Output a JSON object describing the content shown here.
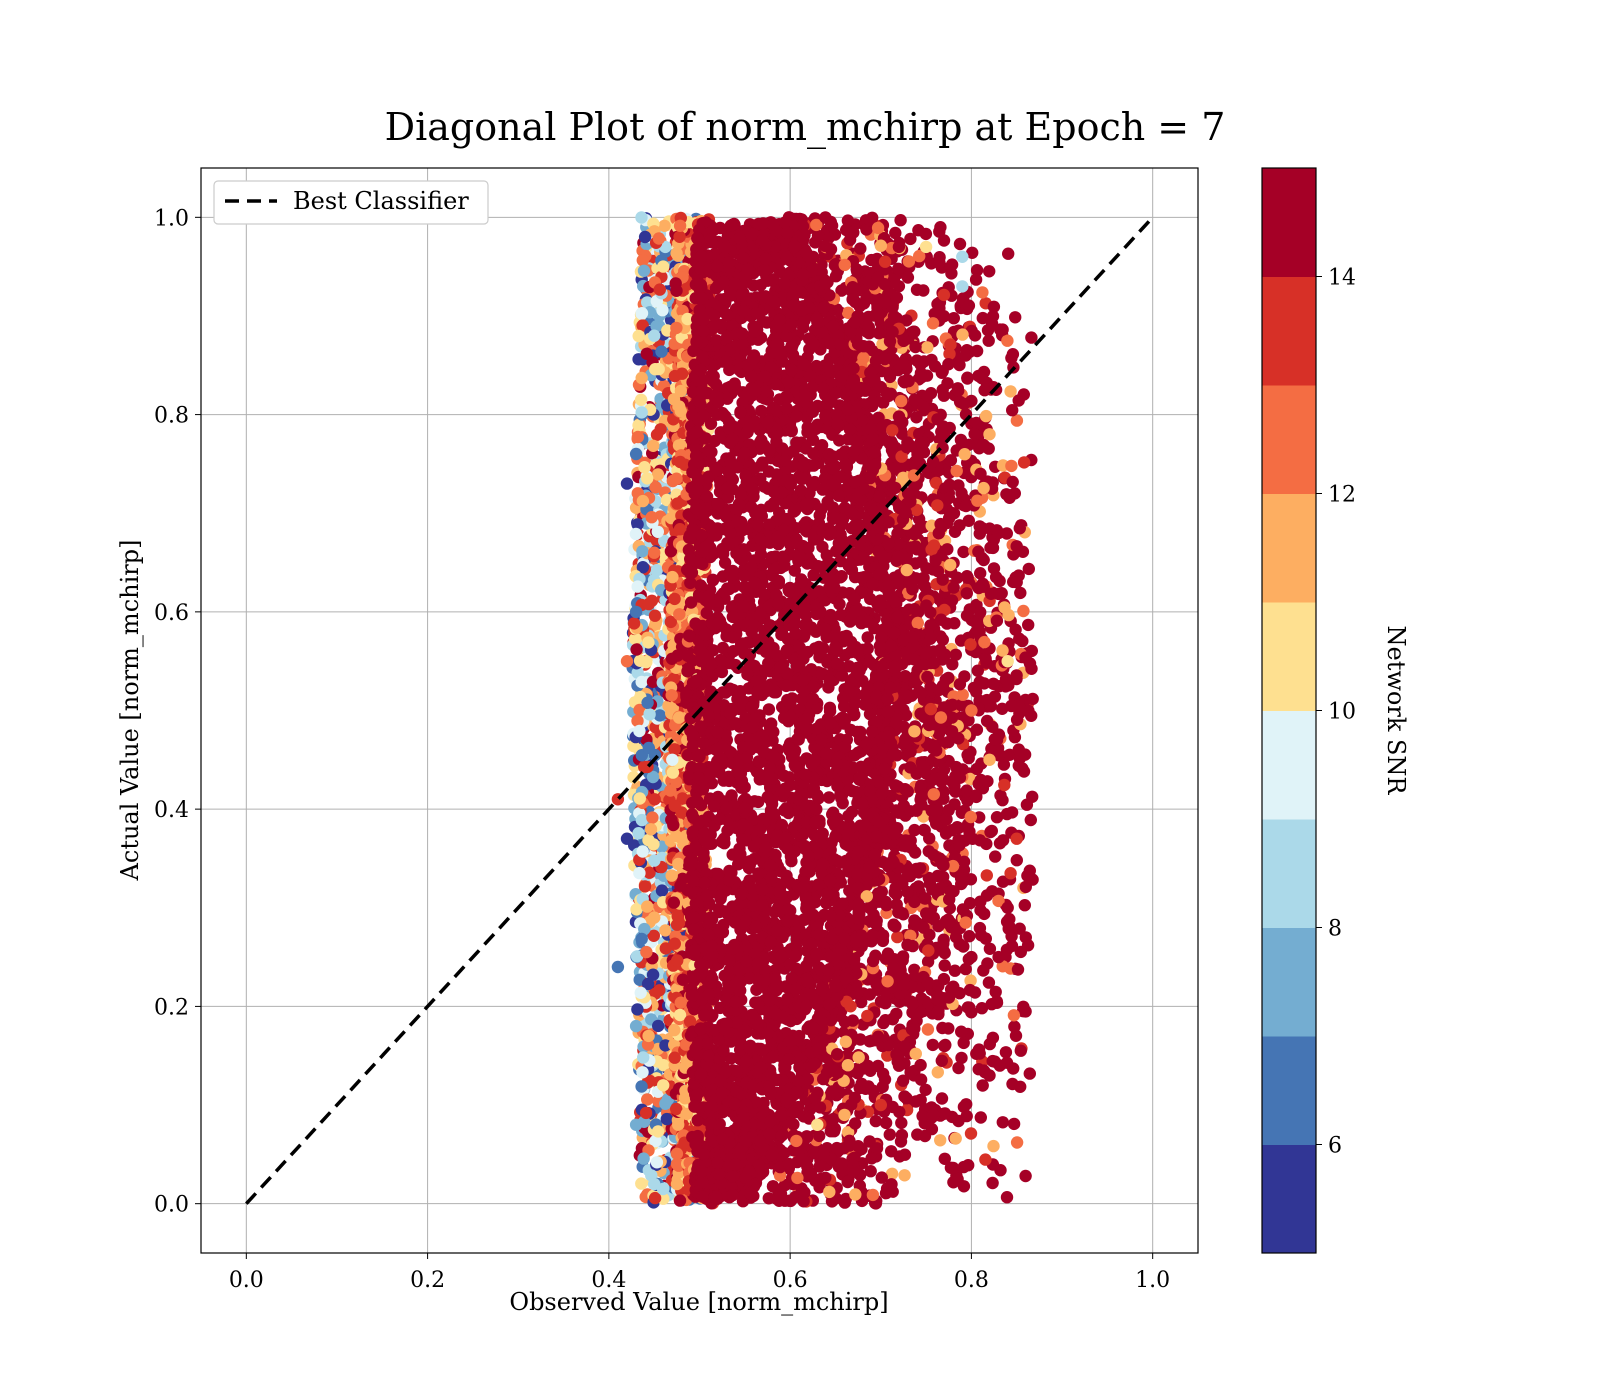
{
  "chart_data": {
    "type": "scatter",
    "title": "Diagonal Plot of norm_mchirp at Epoch = 7",
    "xlabel": "Observed Value [norm_mchirp]",
    "ylabel": "Actual Value [norm_mchirp]",
    "xlim": [
      -0.05,
      1.05
    ],
    "ylim": [
      -0.05,
      1.05
    ],
    "xticks": [
      0.0,
      0.2,
      0.4,
      0.6,
      0.8,
      1.0
    ],
    "yticks": [
      0.0,
      0.2,
      0.4,
      0.6,
      0.8,
      1.0
    ],
    "xtick_labels": [
      "0.0",
      "0.2",
      "0.4",
      "0.6",
      "0.8",
      "1.0"
    ],
    "ytick_labels": [
      "0.0",
      "0.2",
      "0.4",
      "0.6",
      "0.8",
      "1.0"
    ],
    "grid": true,
    "legend_position": "top-left",
    "reference_line": {
      "name": "Best Classifier",
      "x": [
        0.0,
        1.0
      ],
      "y": [
        0.0,
        1.0
      ],
      "style": "dashed",
      "color": "#000000"
    },
    "color_by": "Network SNR",
    "colorbar": {
      "label": "Network SNR",
      "min": 5,
      "max": 15,
      "ticks": [
        6,
        8,
        10,
        12,
        14
      ],
      "tick_labels": [
        "6",
        "8",
        "10",
        "12",
        "14"
      ],
      "colors": [
        "#313695",
        "#4575b4",
        "#74add1",
        "#abd9e9",
        "#e0f3f8",
        "#fee090",
        "#fdae61",
        "#f46d43",
        "#d73027",
        "#a50026"
      ]
    },
    "point_cloud": {
      "description_values": "approximate sampled points; x observed, y actual, c network SNR",
      "dense_band_x_range": [
        0.5,
        0.72
      ],
      "y_range": [
        0.0,
        1.0
      ],
      "points": [
        [
          0.44,
          0.98,
          5.5
        ],
        [
          0.43,
          0.76,
          6.5
        ],
        [
          0.42,
          0.73,
          5.2
        ],
        [
          0.43,
          0.6,
          6.1
        ],
        [
          0.42,
          0.55,
          12.5
        ],
        [
          0.42,
          0.37,
          5.4
        ],
        [
          0.41,
          0.41,
          13.0
        ],
        [
          0.41,
          0.24,
          6.0
        ],
        [
          0.43,
          0.18,
          7.0
        ],
        [
          0.43,
          0.08,
          7.5
        ],
        [
          0.45,
          0.02,
          8.5
        ],
        [
          0.46,
          0.95,
          10.5
        ],
        [
          0.45,
          0.88,
          8.0
        ],
        [
          0.45,
          0.66,
          12.0
        ],
        [
          0.45,
          0.29,
          11.5
        ],
        [
          0.47,
          0.45,
          9.5
        ],
        [
          0.46,
          0.12,
          10.2
        ],
        [
          0.79,
          0.96,
          8.5
        ],
        [
          0.79,
          0.93,
          8.0
        ],
        [
          0.82,
          0.78,
          11.5
        ],
        [
          0.84,
          0.55,
          10.5
        ],
        [
          0.85,
          0.63,
          14.8
        ],
        [
          0.86,
          0.27,
          14.7
        ],
        [
          0.85,
          0.37,
          13.5
        ],
        [
          0.84,
          0.3,
          14.9
        ],
        [
          0.82,
          0.13,
          14.9
        ],
        [
          0.71,
          0.07,
          14.9
        ],
        [
          0.7,
          0.1,
          13.8
        ],
        [
          0.66,
          0.09,
          11.5
        ],
        [
          0.63,
          0.08,
          10.5
        ],
        [
          0.75,
          0.97,
          10.8
        ],
        [
          0.72,
          0.97,
          14.9
        ],
        [
          0.78,
          0.22,
          14.6
        ],
        [
          0.8,
          0.5,
          12.3
        ],
        [
          0.81,
          0.74,
          14.9
        ],
        [
          0.83,
          0.68,
          14.9
        ],
        [
          0.82,
          0.45,
          11.5
        ],
        [
          0.77,
          0.16,
          14.9
        ],
        [
          0.8,
          0.25,
          14.9
        ],
        [
          0.83,
          0.25,
          14.9
        ]
      ]
    }
  }
}
